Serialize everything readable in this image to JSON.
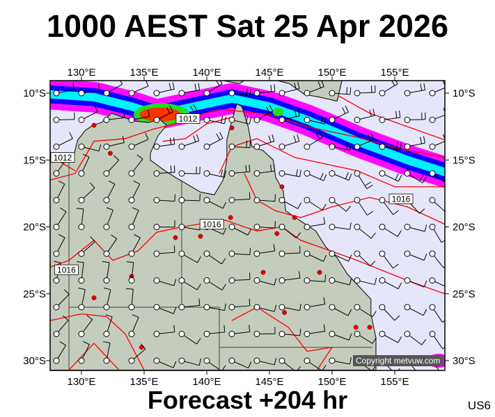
{
  "header": {
    "title": "1000 AEST Sat 25 Apr 2026"
  },
  "footer": {
    "forecast": "Forecast +204 hr",
    "region_code": "US6",
    "copyright": "Copyright metvuw.com"
  },
  "map": {
    "longitude_labels": [
      "130°E",
      "135°E",
      "140°E",
      "145°E",
      "150°E",
      "155°E"
    ],
    "latitude_labels": [
      "10°S",
      "15°S",
      "20°S",
      "25°S",
      "30°S"
    ],
    "extent": {
      "lon": [
        127.5,
        159
      ],
      "lat": [
        -9.1,
        -30.7
      ]
    },
    "isobar_labels": [
      {
        "text": "1012",
        "lon": 137.5,
        "lat": -11.9
      },
      {
        "text": "1012",
        "lon": 127.5,
        "lat": -14.8
      },
      {
        "text": "1016",
        "lon": 139.4,
        "lat": -19.8
      },
      {
        "text": "1016",
        "lon": 154.5,
        "lat": -17.9
      },
      {
        "text": "1016",
        "lon": 127.8,
        "lat": -23.2
      }
    ],
    "colors": {
      "ocean": "#e6e6fa",
      "land": "#c4cdbd",
      "isobar": "#ff0000",
      "city": "#e00000",
      "rain_light": "#ff00ff",
      "rain_mod": "#0000ff",
      "rain_heavy": "#00ffff",
      "rain_vheavy": "#22dd22",
      "rain_extreme": "#ff3300"
    }
  }
}
